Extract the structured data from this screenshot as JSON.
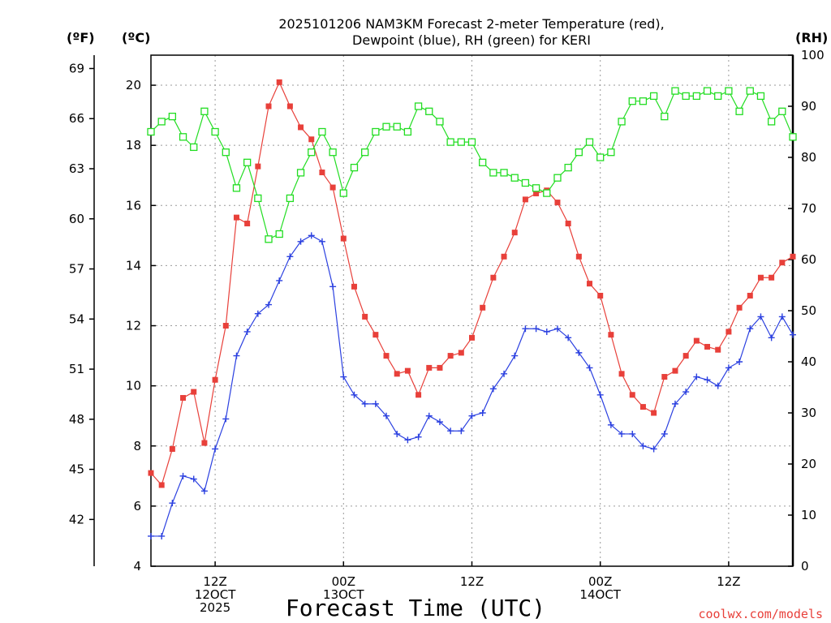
{
  "chart_data": {
    "type": "line",
    "title_line1": "2025101206 NAM3KM Forecast 2-meter Temperature (red),",
    "title_line2": "Dewpoint (blue), RH (green) for KERI",
    "unit_left_f": "(ºF)",
    "unit_left_c": "(ºC)",
    "unit_right": "(RH)",
    "xlabel": "Forecast Time (UTC)",
    "credit": "coolwx.com/models",
    "x_range_hours": [
      0,
      60
    ],
    "c_range": [
      4,
      21
    ],
    "rh_range": [
      0,
      100
    ],
    "c_ticks": [
      "4",
      "6",
      "8",
      "10",
      "12",
      "14",
      "16",
      "18",
      "20"
    ],
    "f_ticks": [
      "42",
      "45",
      "48",
      "51",
      "54",
      "57",
      "60",
      "63",
      "66",
      "69"
    ],
    "rh_ticks": [
      "0",
      "10",
      "20",
      "30",
      "40",
      "50",
      "60",
      "70",
      "80",
      "90",
      "100"
    ],
    "x_ticks": [
      {
        "hour": 6,
        "lines": [
          "12Z",
          "12OCT",
          "2025"
        ]
      },
      {
        "hour": 18,
        "lines": [
          "00Z",
          "13OCT"
        ]
      },
      {
        "hour": 30,
        "lines": [
          "12Z"
        ]
      },
      {
        "hour": 42,
        "lines": [
          "00Z",
          "14OCT"
        ]
      },
      {
        "hour": 54,
        "lines": [
          "12Z"
        ]
      }
    ],
    "colors": {
      "temperature": "#e8403a",
      "dewpoint": "#2b40e0",
      "rh": "#22dd22"
    },
    "series": [
      {
        "name": "Temperature",
        "unit": "C",
        "marker": "filled-square",
        "values": [
          7.1,
          6.7,
          7.9,
          9.6,
          9.8,
          8.1,
          10.2,
          12.0,
          15.6,
          15.4,
          17.3,
          19.3,
          20.1,
          19.3,
          18.6,
          18.2,
          17.1,
          16.6,
          14.9,
          13.3,
          12.3,
          11.7,
          11.0,
          10.4,
          10.5,
          9.7,
          10.6,
          10.6,
          11.0,
          11.1,
          11.6,
          12.6,
          13.6,
          14.3,
          15.1,
          16.2,
          16.4,
          16.5,
          16.1,
          15.4,
          14.3,
          13.4,
          13.0,
          11.7,
          10.4,
          9.7,
          9.3,
          9.1,
          10.3,
          10.5,
          11.0,
          11.5,
          11.3,
          11.2,
          11.8,
          12.6,
          13.0,
          13.6,
          13.6,
          14.1,
          14.3
        ]
      },
      {
        "name": "Dewpoint",
        "unit": "C",
        "marker": "plus",
        "values": [
          5.0,
          5.0,
          6.1,
          7.0,
          6.9,
          6.5,
          7.9,
          8.9,
          11.0,
          11.8,
          12.4,
          12.7,
          13.5,
          14.3,
          14.8,
          15.0,
          14.8,
          13.3,
          10.3,
          9.7,
          9.4,
          9.4,
          9.0,
          8.4,
          8.2,
          8.3,
          9.0,
          8.8,
          8.5,
          8.5,
          9.0,
          9.1,
          9.9,
          10.4,
          11.0,
          11.9,
          11.9,
          11.8,
          11.9,
          11.6,
          11.1,
          10.6,
          9.7,
          8.7,
          8.4,
          8.4,
          8.0,
          7.9,
          8.4,
          9.4,
          9.8,
          10.3,
          10.2,
          10.0,
          10.6,
          10.8,
          11.9,
          12.3,
          11.6,
          12.3,
          11.7
        ]
      },
      {
        "name": "RH",
        "unit": "%",
        "marker": "open-square",
        "values": [
          85,
          87,
          88,
          84,
          82,
          89,
          85,
          81,
          74,
          79,
          72,
          64,
          65,
          72,
          77,
          81,
          85,
          81,
          73,
          78,
          81,
          85,
          86,
          86,
          85,
          90,
          89,
          87,
          83,
          83,
          83,
          79,
          77,
          77,
          76,
          75,
          74,
          73,
          76,
          78,
          81,
          83,
          80,
          81,
          87,
          91,
          91,
          92,
          88,
          93,
          92,
          92,
          93,
          92,
          93,
          89,
          93,
          92,
          87,
          89,
          84
        ]
      }
    ]
  }
}
